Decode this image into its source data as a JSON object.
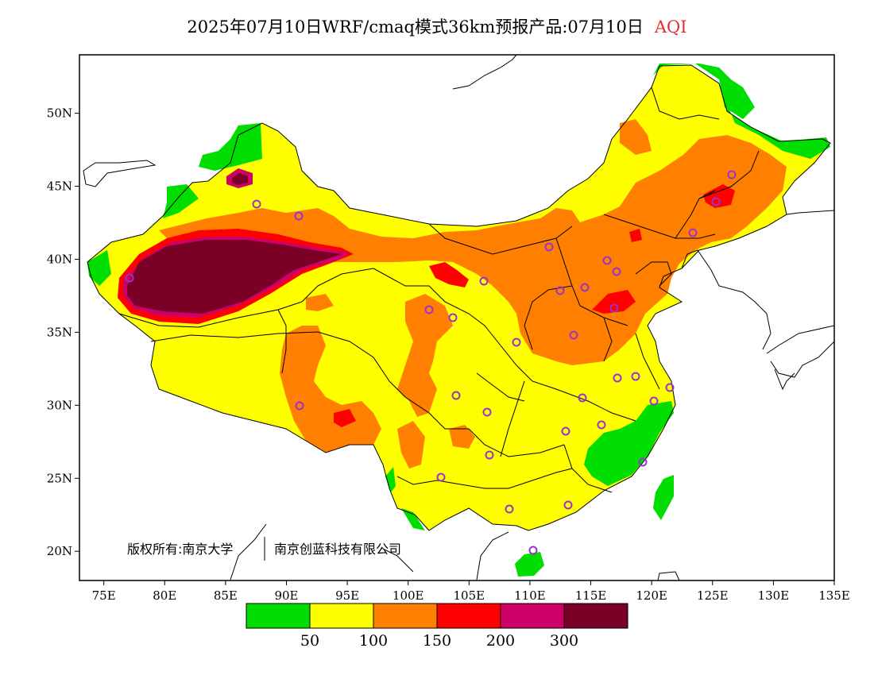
{
  "header": {
    "title": "2025年07月10日WRF/cmaq模式36km预报产品:07月10日",
    "product": "AQI",
    "product_color": "#e03030"
  },
  "axes": {
    "x_ticks": [
      "75E",
      "80E",
      "85E",
      "90E",
      "95E",
      "100E",
      "105E",
      "110E",
      "115E",
      "120E",
      "125E",
      "130E",
      "135E"
    ],
    "y_ticks": [
      "50N",
      "45N",
      "40N",
      "35N",
      "30N",
      "25N",
      "20N"
    ]
  },
  "copyright": {
    "left": "版权所有:南京大学",
    "right": "南京创蓝科技有限公司"
  },
  "legend": {
    "colors": [
      "#00dd00",
      "#ffff00",
      "#ff8000",
      "#ff0000",
      "#cc0066",
      "#7a0025"
    ],
    "labels": [
      "50",
      "100",
      "150",
      "200",
      "300"
    ],
    "categories": [
      "green",
      "yellow",
      "orange",
      "red",
      "magenta",
      "maroon"
    ]
  },
  "map": {
    "lon_range": [
      73,
      135
    ],
    "lat_range": [
      18,
      54
    ],
    "background": "#ffffff",
    "station_marker_color": "#9933cc"
  }
}
